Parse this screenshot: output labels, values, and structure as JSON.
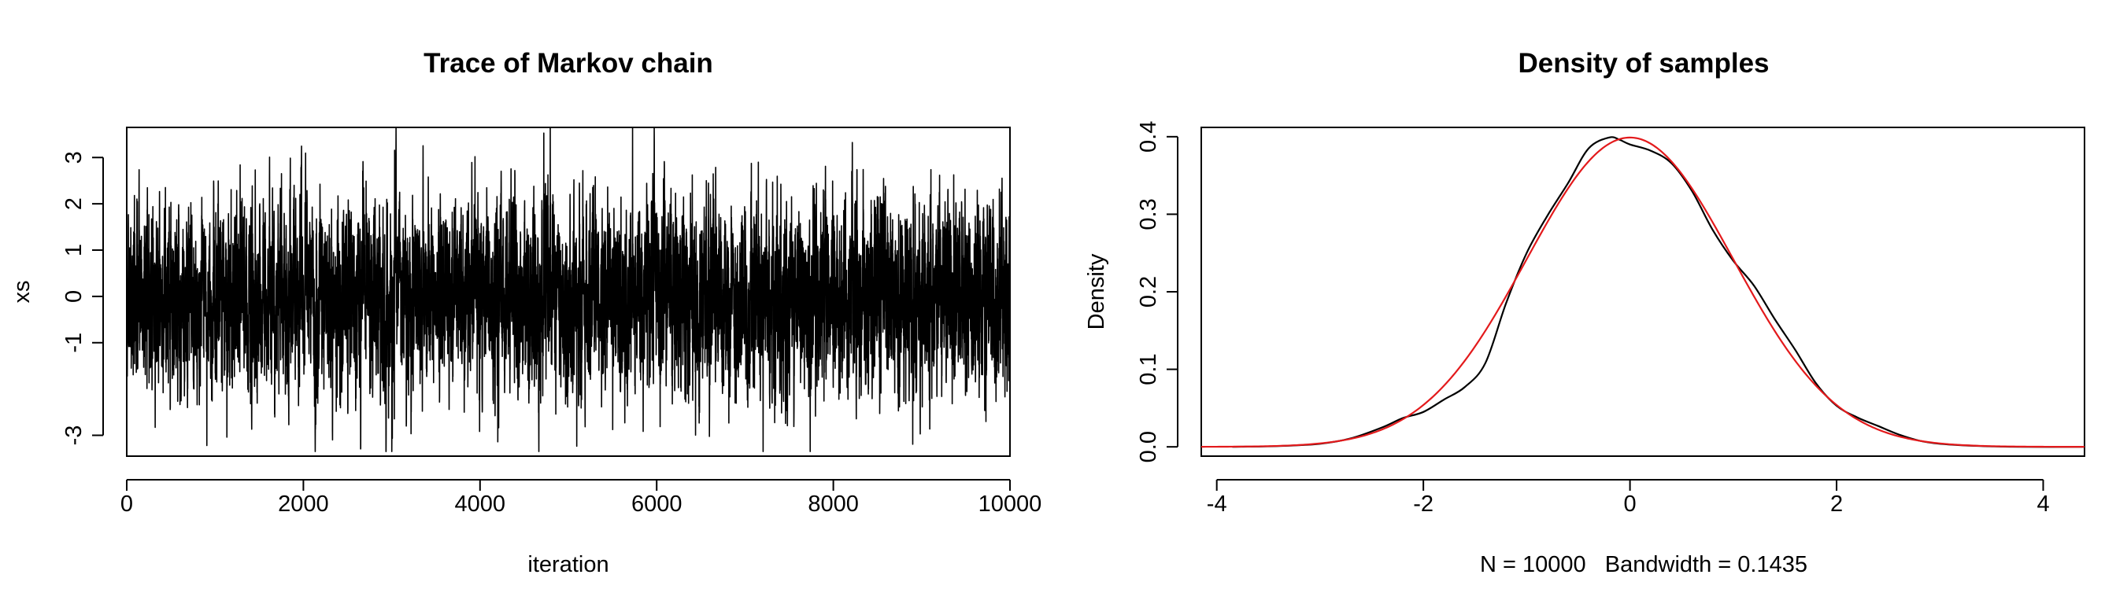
{
  "chart_data": [
    {
      "type": "line",
      "title": "Trace of Markov chain",
      "xlabel": "iteration",
      "ylabel": "xs",
      "xlim": [
        0,
        10000
      ],
      "ylim": [
        -3.45,
        3.65
      ],
      "xticks": [
        0,
        2000,
        4000,
        6000,
        8000,
        10000
      ],
      "xtick_labels": [
        "0",
        "2000",
        "4000",
        "6000",
        "8000",
        "10000"
      ],
      "yticks": [
        -3,
        -1,
        0,
        1,
        2,
        3
      ],
      "ytick_labels": [
        "-3",
        "-1",
        "0",
        "1",
        "2",
        "3"
      ],
      "n_samples": 10000,
      "mean": 0.0,
      "sd": 1.0,
      "approx_min": -3.35,
      "approx_max": 3.65,
      "line_color": "#000000",
      "grid": false,
      "legend": "none"
    },
    {
      "type": "line",
      "title": "Density of samples",
      "xlabel": "N = 10000   Bandwidth = 0.1435",
      "ylabel": "Density",
      "xlim": [
        -4.15,
        4.4
      ],
      "ylim": [
        -0.012,
        0.412
      ],
      "xticks": [
        -4,
        -2,
        0,
        2,
        4
      ],
      "xtick_labels": [
        "-4",
        "-2",
        "0",
        "2",
        "4"
      ],
      "yticks": [
        0.0,
        0.1,
        0.2,
        0.3,
        0.4
      ],
      "ytick_labels": [
        "0.0",
        "0.1",
        "0.2",
        "0.3",
        "0.4"
      ],
      "series": [
        {
          "color": "#000000",
          "x": [
            -3.85,
            -3.4,
            -3.0,
            -2.7,
            -2.4,
            -2.2,
            -2.0,
            -1.8,
            -1.6,
            -1.4,
            -1.2,
            -1.0,
            -0.8,
            -0.6,
            -0.4,
            -0.2,
            -0.1,
            0.0,
            0.2,
            0.4,
            0.6,
            0.8,
            1.0,
            1.2,
            1.4,
            1.6,
            1.8,
            2.0,
            2.2,
            2.4,
            2.6,
            2.8,
            3.0,
            3.4,
            3.8,
            4.4
          ],
          "y": [
            0.0,
            0.001,
            0.004,
            0.011,
            0.025,
            0.037,
            0.045,
            0.061,
            0.077,
            0.108,
            0.185,
            0.25,
            0.298,
            0.34,
            0.385,
            0.399,
            0.396,
            0.39,
            0.382,
            0.366,
            0.33,
            0.28,
            0.24,
            0.208,
            0.165,
            0.125,
            0.082,
            0.053,
            0.038,
            0.027,
            0.016,
            0.008,
            0.004,
            0.001,
            0.0,
            0.0
          ]
        },
        {
          "color": "#e31a1c",
          "distribution": "normal",
          "mean": 0.0,
          "sd": 1.0
        }
      ],
      "grid": false,
      "legend": "none"
    }
  ]
}
